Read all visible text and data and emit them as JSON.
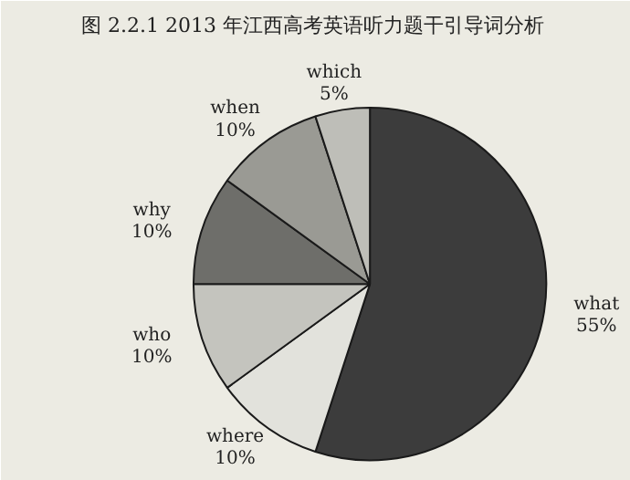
{
  "chart_data": {
    "type": "pie",
    "title": "图 2.2.1  2013 年江西高考英语听力题干引导词分析",
    "categories": [
      "what",
      "where",
      "who",
      "why",
      "when",
      "which"
    ],
    "values": [
      55,
      10,
      10,
      10,
      10,
      5
    ],
    "colors": [
      "#3c3c3c",
      "#e2e2dc",
      "#c4c4be",
      "#6e6e6a",
      "#9a9a94",
      "#bebeb8"
    ],
    "value_labels": [
      "55%",
      "10%",
      "10%",
      "10%",
      "10%",
      "5%"
    ]
  }
}
